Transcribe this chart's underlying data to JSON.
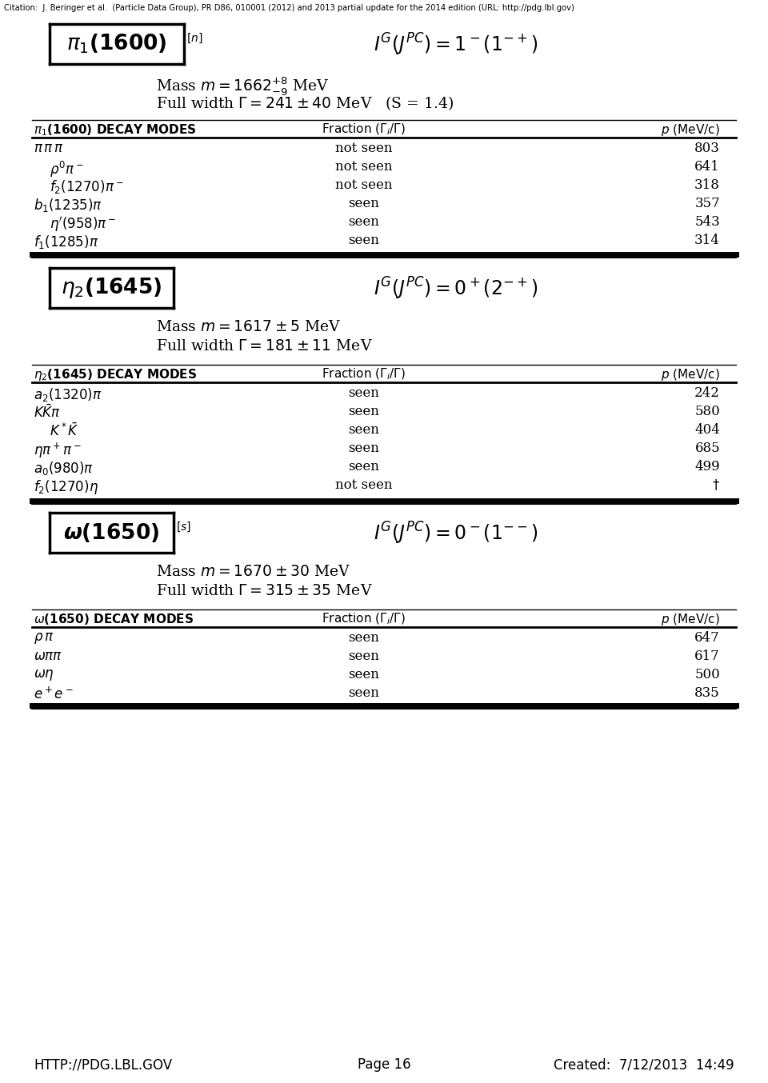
{
  "citation": "Citation:  J. Beringer et al.  (Particle Data Group), PR D86, 010001 (2012) and 2013 partial update for the 2014 edition (URL: http://pdg.lbl.gov)",
  "footer_left": "HTTP://PDG.LBL.GOV",
  "footer_mid": "Page 16",
  "footer_right": "Created:  7/12/2013  14:49",
  "bg_color": "#ffffff",
  "particles": [
    {
      "name_tex": "$\\pi_1$(1600)",
      "name_superscript": "$^{[n]}$",
      "quantum_tex": "$I^G(J^{PC}) = 1^-(1^{-+})$",
      "mass_tex": "Mass $m = 1662^{+8}_{-9}$ MeV",
      "width_tex": "Full width $\\Gamma = 241 \\pm 40$ MeV   (S = 1.4)",
      "table_header_tex": "$\\pi_1$(1600) DECAY MODES",
      "modes": [
        {
          "decay_tex": "$\\pi\\,\\pi\\,\\pi$",
          "fraction": "not seen",
          "p": "803",
          "indent": false
        },
        {
          "decay_tex": "$\\rho^0\\pi^-$",
          "fraction": "not seen",
          "p": "641",
          "indent": true
        },
        {
          "decay_tex": "$f_2(1270)\\pi^-$",
          "fraction": "not seen",
          "p": "318",
          "indent": true
        },
        {
          "decay_tex": "$b_1(1235)\\pi$",
          "fraction": "seen",
          "p": "357",
          "indent": false
        },
        {
          "decay_tex": "$\\eta^{\\prime}(958)\\pi^-$",
          "fraction": "seen",
          "p": "543",
          "indent": true
        },
        {
          "decay_tex": "$f_1(1285)\\pi$",
          "fraction": "seen",
          "p": "314",
          "indent": false
        }
      ]
    },
    {
      "name_tex": "$\\eta_2$(1645)",
      "name_superscript": "",
      "quantum_tex": "$I^G(J^{PC}) = 0^+(2^{-+})$",
      "mass_tex": "Mass $m = 1617 \\pm 5$ MeV",
      "width_tex": "Full width $\\Gamma = 181 \\pm 11$ MeV",
      "table_header_tex": "$\\eta_2$(1645) DECAY MODES",
      "modes": [
        {
          "decay_tex": "$a_2(1320)\\pi$",
          "fraction": "seen",
          "p": "242",
          "indent": false
        },
        {
          "decay_tex": "$K\\bar{K}\\pi$",
          "fraction": "seen",
          "p": "580",
          "indent": false
        },
        {
          "decay_tex": "$K^*\\bar{K}$",
          "fraction": "seen",
          "p": "404",
          "indent": true
        },
        {
          "decay_tex": "$\\eta\\pi^+\\pi^-$",
          "fraction": "seen",
          "p": "685",
          "indent": false
        },
        {
          "decay_tex": "$a_0(980)\\pi$",
          "fraction": "seen",
          "p": "499",
          "indent": false
        },
        {
          "decay_tex": "$f_2(1270)\\eta$",
          "fraction": "not seen",
          "p": "$\\dagger$",
          "indent": false
        }
      ]
    },
    {
      "name_tex": "$\\omega$(1650)",
      "name_superscript": "$^{[s]}$",
      "quantum_tex": "$I^G(J^{PC}) = 0^-(1^{--})$",
      "mass_tex": "Mass $m = 1670 \\pm 30$ MeV",
      "width_tex": "Full width $\\Gamma = 315 \\pm 35$ MeV",
      "table_header_tex": "$\\omega$(1650) DECAY MODES",
      "modes": [
        {
          "decay_tex": "$\\rho\\,\\pi$",
          "fraction": "seen",
          "p": "647",
          "indent": false
        },
        {
          "decay_tex": "$\\omega\\pi\\pi$",
          "fraction": "seen",
          "p": "617",
          "indent": false
        },
        {
          "decay_tex": "$\\omega\\eta$",
          "fraction": "seen",
          "p": "500",
          "indent": false
        },
        {
          "decay_tex": "$e^+e^-$",
          "fraction": "seen",
          "p": "835",
          "indent": false
        }
      ]
    }
  ]
}
